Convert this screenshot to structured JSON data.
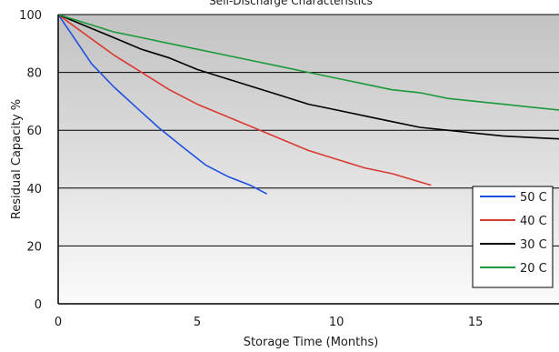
{
  "chart_data": {
    "type": "line",
    "title": "Self-Discharge Characteristics",
    "xlabel": "Storage Time (Months)",
    "ylabel": "Residual Capacity %",
    "xlim": [
      0,
      18
    ],
    "ylim": [
      0,
      100
    ],
    "x_ticks": [
      0,
      5,
      10,
      15
    ],
    "y_ticks": [
      0,
      20,
      40,
      60,
      80,
      100
    ],
    "grid": "horizontal",
    "legend_position": "bottom-right",
    "series": [
      {
        "name": "50 C",
        "color": "#1f4fe0",
        "x": [
          0,
          0.5,
          1.2,
          2,
          2.8,
          3.6,
          4.5,
          5.3,
          6.1,
          6.9,
          7.5
        ],
        "y": [
          100,
          93,
          83,
          75,
          68,
          61,
          54,
          48,
          44,
          41,
          38
        ]
      },
      {
        "name": "40 C",
        "color": "#d93a32",
        "x": [
          0,
          1,
          2,
          3,
          4,
          5,
          6,
          7,
          8,
          9,
          10,
          11,
          12,
          13.4
        ],
        "y": [
          100,
          93,
          86,
          80,
          74,
          69,
          65,
          61,
          57,
          53,
          50,
          47,
          45,
          41
        ]
      },
      {
        "name": "30 C",
        "color": "#000000",
        "x": [
          0,
          1,
          2,
          3,
          4,
          5,
          6,
          7,
          8,
          9,
          10,
          11,
          12,
          13,
          14,
          15,
          16,
          17,
          18
        ],
        "y": [
          100,
          96,
          92,
          88,
          85,
          81,
          78,
          75,
          72,
          69,
          67,
          65,
          63,
          61,
          60,
          59,
          58,
          57.5,
          57
        ]
      },
      {
        "name": "20 C",
        "color": "#1a9a3a",
        "x": [
          0,
          1,
          2,
          3,
          4,
          5,
          6,
          7,
          8,
          9,
          10,
          11,
          12,
          13,
          14,
          15,
          16,
          17,
          18
        ],
        "y": [
          100,
          97,
          94,
          92,
          90,
          88,
          86,
          84,
          82,
          80,
          78,
          76,
          74,
          73,
          71,
          70,
          69,
          68,
          67
        ]
      }
    ]
  }
}
